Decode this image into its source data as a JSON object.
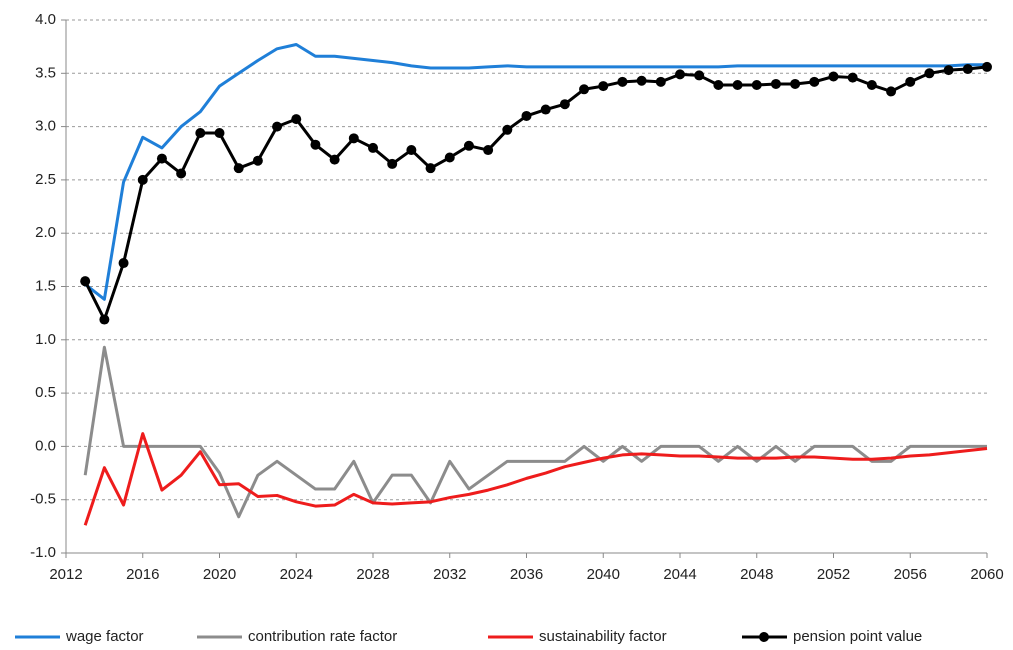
{
  "chart_data": {
    "type": "line",
    "x": [
      2013,
      2014,
      2015,
      2016,
      2017,
      2018,
      2019,
      2020,
      2021,
      2022,
      2023,
      2024,
      2025,
      2026,
      2027,
      2028,
      2029,
      2030,
      2031,
      2032,
      2033,
      2034,
      2035,
      2036,
      2037,
      2038,
      2039,
      2040,
      2041,
      2042,
      2043,
      2044,
      2045,
      2046,
      2047,
      2048,
      2049,
      2050,
      2051,
      2052,
      2053,
      2054,
      2055,
      2056,
      2057,
      2058,
      2059,
      2060
    ],
    "series": [
      {
        "name": "wage factor",
        "color": "#1f7fd8",
        "marker": false,
        "values": [
          1.52,
          1.38,
          2.48,
          2.9,
          2.8,
          3.0,
          3.14,
          3.38,
          3.5,
          3.62,
          3.73,
          3.77,
          3.66,
          3.66,
          3.64,
          3.62,
          3.6,
          3.57,
          3.55,
          3.55,
          3.55,
          3.56,
          3.57,
          3.56,
          3.56,
          3.56,
          3.56,
          3.56,
          3.56,
          3.56,
          3.56,
          3.56,
          3.56,
          3.56,
          3.57,
          3.57,
          3.57,
          3.57,
          3.57,
          3.57,
          3.57,
          3.57,
          3.57,
          3.57,
          3.57,
          3.57,
          3.58,
          3.58
        ]
      },
      {
        "name": "contribution rate factor",
        "color": "#8c8c8c",
        "marker": false,
        "values": [
          -0.27,
          0.93,
          0,
          0,
          0,
          0,
          0,
          -0.25,
          -0.66,
          -0.27,
          -0.14,
          -0.27,
          -0.4,
          -0.4,
          -0.14,
          -0.53,
          -0.27,
          -0.27,
          -0.53,
          -0.14,
          -0.4,
          -0.27,
          -0.14,
          -0.14,
          -0.14,
          -0.14,
          0,
          -0.14,
          0,
          -0.14,
          0,
          0,
          0,
          -0.14,
          0,
          -0.14,
          0,
          -0.14,
          0,
          0,
          0,
          -0.14,
          -0.14,
          0,
          0,
          0,
          0,
          0
        ]
      },
      {
        "name": "sustainability factor",
        "color": "#ee1c1c",
        "marker": false,
        "values": [
          -0.74,
          -0.2,
          -0.55,
          0.12,
          -0.41,
          -0.27,
          -0.05,
          -0.36,
          -0.35,
          -0.47,
          -0.46,
          -0.52,
          -0.56,
          -0.55,
          -0.45,
          -0.53,
          -0.54,
          -0.53,
          -0.52,
          -0.48,
          -0.45,
          -0.41,
          -0.36,
          -0.3,
          -0.25,
          -0.19,
          -0.15,
          -0.11,
          -0.08,
          -0.07,
          -0.08,
          -0.09,
          -0.09,
          -0.1,
          -0.11,
          -0.11,
          -0.11,
          -0.1,
          -0.1,
          -0.11,
          -0.12,
          -0.12,
          -0.11,
          -0.09,
          -0.08,
          -0.06,
          -0.04,
          -0.02
        ]
      },
      {
        "name": "pension point value",
        "color": "#000000",
        "marker": true,
        "values": [
          1.55,
          1.19,
          1.72,
          2.5,
          2.7,
          2.56,
          2.94,
          2.94,
          2.61,
          2.68,
          3.0,
          3.07,
          2.83,
          2.69,
          2.89,
          2.8,
          2.65,
          2.78,
          2.61,
          2.71,
          2.82,
          2.78,
          2.97,
          3.1,
          3.16,
          3.21,
          3.35,
          3.38,
          3.42,
          3.43,
          3.42,
          3.49,
          3.48,
          3.39,
          3.39,
          3.39,
          3.4,
          3.4,
          3.42,
          3.47,
          3.46,
          3.39,
          3.33,
          3.42,
          3.5,
          3.53,
          3.54,
          3.56
        ]
      }
    ],
    "xlim": [
      2012,
      2060
    ],
    "xticks": [
      2012,
      2016,
      2020,
      2024,
      2028,
      2032,
      2036,
      2040,
      2044,
      2048,
      2052,
      2056,
      2060
    ],
    "ylim": [
      -1,
      4
    ],
    "yticks": [
      {
        "value": -1,
        "label": "-1.0"
      },
      -0.5,
      {
        "value": 0,
        "label": "0.0"
      },
      0.5,
      {
        "value": 1,
        "label": "1.0"
      },
      1.5,
      {
        "value": 2,
        "label": "2.0"
      },
      2.5,
      {
        "value": 3,
        "label": "3.0"
      },
      3.5,
      {
        "value": 4,
        "label": "4.0"
      }
    ],
    "grid": true,
    "legend": "bottom"
  }
}
